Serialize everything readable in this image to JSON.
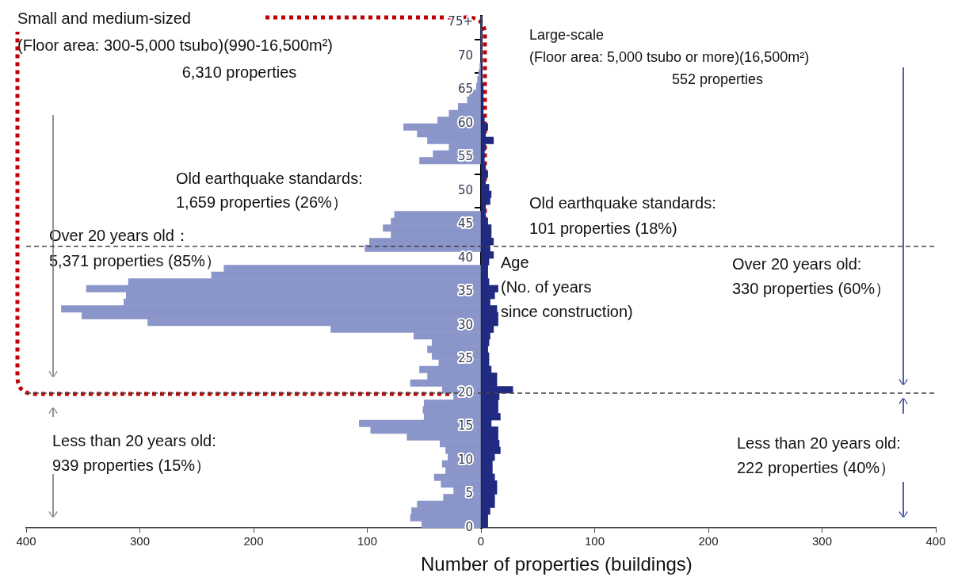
{
  "chart_data": {
    "type": "bar",
    "orientation": "horizontal",
    "stacked": true,
    "xlabel": "Number of properties (buildings)",
    "x": [
      0.5,
      1.5,
      2.5,
      3.5,
      4.5,
      5.5,
      6.5,
      7.5,
      8.5,
      9.5,
      10.5,
      11.5,
      12.5,
      13.5,
      14.5,
      15.5,
      16.5,
      17.5,
      18.5,
      19.5,
      20.5,
      21.5,
      22.5,
      23.5,
      24.5,
      25.5,
      26.5,
      27.5,
      28.5,
      29.5,
      30.5,
      31.5,
      32.5,
      33.5,
      34.5,
      35.5,
      36.5,
      37.5,
      38.5,
      39.5,
      40.5,
      41.5,
      42.5,
      43.5,
      44.5,
      45.5,
      46.5,
      47.5,
      48.5,
      49.5,
      50.5,
      51.5,
      52.5,
      53.5,
      54.5,
      55.5,
      56.5,
      57.5,
      58.5,
      59.5,
      60.5,
      61.5,
      62.5,
      63.5,
      64.5,
      65.5,
      66.5,
      67.5,
      68.5,
      69.5,
      70.5,
      71.5,
      72.5,
      73.5,
      74.5,
      75.5
    ],
    "series": [
      {
        "color": "#8a95c9",
        "values": [
          -52,
          -62,
          -61,
          -56,
          -33,
          -24,
          -35,
          -41,
          -31,
          -34,
          -29,
          -31,
          -36,
          -65,
          -97,
          -107,
          -50,
          -51,
          -50,
          -24,
          -34,
          -62,
          -47,
          -54,
          -37,
          -43,
          -47,
          -43,
          -59,
          -132,
          -293,
          -351,
          -369,
          -314,
          -312,
          -347,
          -310,
          -237,
          -226,
          null,
          null,
          -102,
          -98,
          -79,
          -86,
          -79,
          -76,
          null,
          null,
          null,
          null,
          null,
          null,
          null,
          -54,
          -42,
          -28,
          -47,
          -56,
          -68,
          -38,
          -28,
          -20,
          -12,
          -10,
          -4,
          -3,
          -2,
          -1,
          0,
          0,
          0,
          0,
          0,
          0,
          0
        ]
      },
      {
        "color": "#1f2a80",
        "values": [
          6,
          6,
          8,
          12,
          12,
          14,
          14,
          12,
          10,
          10,
          12,
          17,
          16,
          15,
          15,
          9,
          17,
          15,
          15,
          16,
          28,
          14,
          14,
          9,
          7,
          7,
          6,
          7,
          8,
          11,
          15,
          15,
          14,
          8,
          12,
          15,
          7,
          6,
          6,
          7,
          11,
          8,
          11,
          9,
          9,
          6,
          4,
          4,
          8,
          9,
          7,
          4,
          6,
          4,
          3,
          3,
          4,
          11,
          4,
          6,
          3,
          2,
          2,
          2,
          2,
          2,
          1,
          1,
          1,
          1,
          1,
          1,
          1,
          1,
          1,
          1
        ]
      }
    ],
    "xlim": [
      -400,
      400
    ],
    "xticks": [
      {
        "value": -400,
        "label": "400"
      },
      {
        "value": -300,
        "label": "300"
      },
      {
        "value": -200,
        "label": "200"
      },
      {
        "value": -100,
        "label": "100"
      },
      0,
      100,
      200,
      300,
      400
    ],
    "ylim": [
      0,
      76
    ],
    "yticks": [
      0,
      5,
      10,
      15,
      20,
      25,
      30,
      35,
      40,
      45,
      50,
      55,
      60,
      65,
      70,
      {
        "value": 75,
        "label": "75+"
      }
    ],
    "ref_lines": [
      {
        "axis": "y",
        "value": 20,
        "color": "#444444",
        "line_style": "dashed"
      },
      {
        "axis": "y",
        "value": 41.8,
        "color": "#444444",
        "line_style": "dashed"
      }
    ],
    "annotations": [
      "Small and medium-sized\n(Floor area: 300-5,000 tsubo)(990-16,500m²)\n6,310 properties",
      "Large-scale\n(Floor area: 5,000 tsubo or more)(16,500m²)\n552 properties",
      "Old earthquake standards:\n1,659 properties (26%）",
      "Over 20 years old：\n5,371 properties (85%）",
      "Old earthquake standards:\n101 properties (18%)",
      "Over 20 years old:\n330 properties (60%）",
      "Age\n(No. of years\nsince construction)",
      "Less than 20 years old:\n939 properties (15%）",
      "Less than 20 years old:\n222 properties (40%）"
    ]
  }
}
